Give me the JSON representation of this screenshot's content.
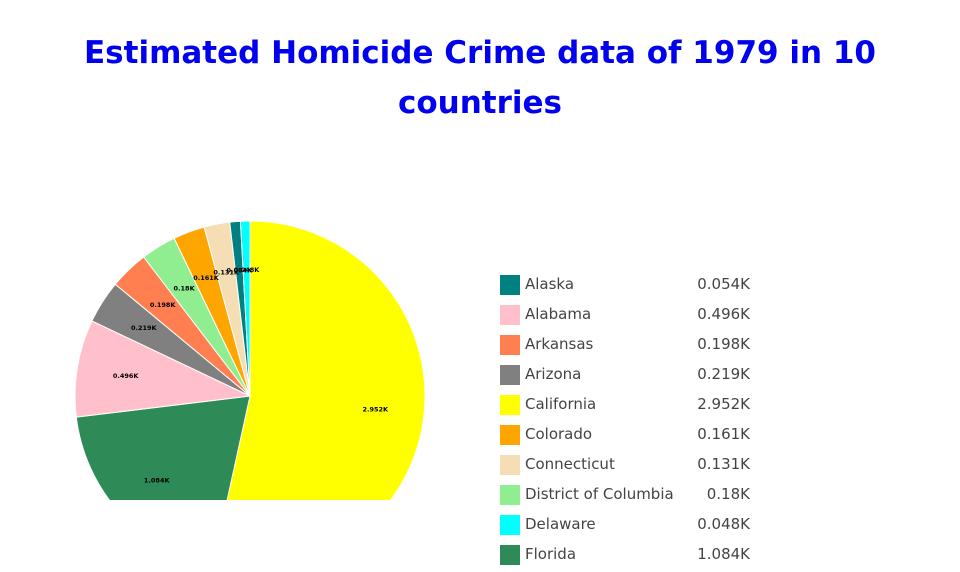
{
  "chart_data": {
    "type": "pie",
    "title": "Estimated Homicide Crime data of 1979 in 10 countries",
    "slices": [
      {
        "label": "Alaska",
        "value": 0.054,
        "display": "0.054K",
        "color": "#008080"
      },
      {
        "label": "Alabama",
        "value": 0.496,
        "display": "0.496K",
        "color": "#ffc0cb"
      },
      {
        "label": "Arkansas",
        "value": 0.198,
        "display": "0.198K",
        "color": "#ff7f50"
      },
      {
        "label": "Arizona",
        "value": 0.219,
        "display": "0.219K",
        "color": "#808080"
      },
      {
        "label": "California",
        "value": 2.952,
        "display": "2.952K",
        "color": "#ffff00"
      },
      {
        "label": "Colorado",
        "value": 0.161,
        "display": "0.161K",
        "color": "#ffa500"
      },
      {
        "label": "Connecticut",
        "value": 0.131,
        "display": "0.131K",
        "color": "#f5deb3"
      },
      {
        "label": "District of Columbia",
        "value": 0.18,
        "display": "0.18K",
        "color": "#90ee90"
      },
      {
        "label": "Delaware",
        "value": 0.048,
        "display": "0.048K",
        "color": "#00ffff"
      },
      {
        "label": "Florida",
        "value": 1.084,
        "display": "1.084K",
        "color": "#2e8b57"
      }
    ],
    "pie_order": [
      "California",
      "Florida",
      "Alabama",
      "Arizona",
      "Arkansas",
      "District of Columbia",
      "Colorado",
      "Connecticut",
      "Alaska",
      "Delaware"
    ],
    "legend_position": "right"
  },
  "colors": {
    "title": "#0000ee",
    "legend_text": "#444444",
    "slice_label": "#000000"
  }
}
